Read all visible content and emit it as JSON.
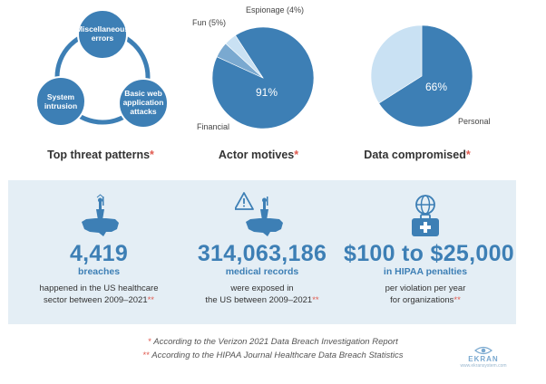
{
  "threat_diagram": {
    "nodes": [
      "Miscellaneous errors",
      "Basic web application attacks",
      "System intrusion"
    ],
    "title": "Top threat patterns",
    "title_mark": "*"
  },
  "chart_data": [
    {
      "type": "pie",
      "title": "Actor motives",
      "title_mark": "*",
      "slices": [
        {
          "label": "Financial",
          "value": 91,
          "color": "#3d7fb5",
          "value_label": "91%"
        },
        {
          "label": "Fun (5%)",
          "value": 5,
          "color": "#7aa9d0"
        },
        {
          "label": "Espionage (4%)",
          "value": 4,
          "color": "#c9e1f3"
        }
      ]
    },
    {
      "type": "pie",
      "title": "Data compromised",
      "title_mark": "*",
      "slices": [
        {
          "label": "Personal",
          "value": 66,
          "color": "#3d7fb5",
          "value_label": "66%"
        },
        {
          "label": "",
          "value": 34,
          "color": "#c9e1f3"
        }
      ]
    }
  ],
  "stats": [
    {
      "value": "4,419",
      "label": "breaches",
      "desc_line1": "happened in the US healthcare",
      "desc_line2": "sector between 2009–2021",
      "mark": "**",
      "icon": "usa-map-statue-icon"
    },
    {
      "value": "314,063,186",
      "label": "medical records",
      "desc_line1": "were exposed in",
      "desc_line2": "the US between 2009–2021",
      "mark": "**",
      "icon": "warning-usa-map-icon"
    },
    {
      "value": "$100 to $25,000",
      "label": "in HIPAA penalties",
      "desc_line1": "per violation per year",
      "desc_line2": "for organizations",
      "mark": "**",
      "icon": "globe-medical-case-icon"
    }
  ],
  "footnotes": [
    {
      "mark": "*",
      "text": "According to the Verizon 2021 Data Breach Investigation Report"
    },
    {
      "mark": "**",
      "text": "According to the HIPAA Journal Healthcare Data Breach Statistics"
    }
  ],
  "brand": {
    "name": "EKRAN",
    "url": "www.ekransystem.com"
  },
  "colors": {
    "accent": "#3d7fb5",
    "light": "#c9e1f3",
    "mid": "#7aa9d0",
    "panel": "#e4eef5",
    "mark": "#e05a4f"
  }
}
